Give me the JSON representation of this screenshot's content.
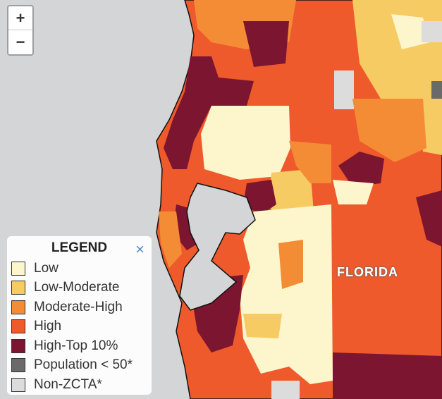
{
  "zoom": {
    "in": "+",
    "out": "−"
  },
  "legend": {
    "title": "LEGEND",
    "close": "×",
    "items": [
      {
        "label": "Low",
        "color": "#fdf6cc"
      },
      {
        "label": "Low-Moderate",
        "color": "#f7cb63"
      },
      {
        "label": "Moderate-High",
        "color": "#f48c36"
      },
      {
        "label": "High",
        "color": "#ee5a2b"
      },
      {
        "label": "High-Top 10%",
        "color": "#7b1530"
      },
      {
        "label": "Population < 50*",
        "color": "#6a6a6a"
      },
      {
        "label": "Non-ZCTA*",
        "color": "#dcdcdc"
      }
    ]
  },
  "map": {
    "state_label": "FLORIDA"
  }
}
